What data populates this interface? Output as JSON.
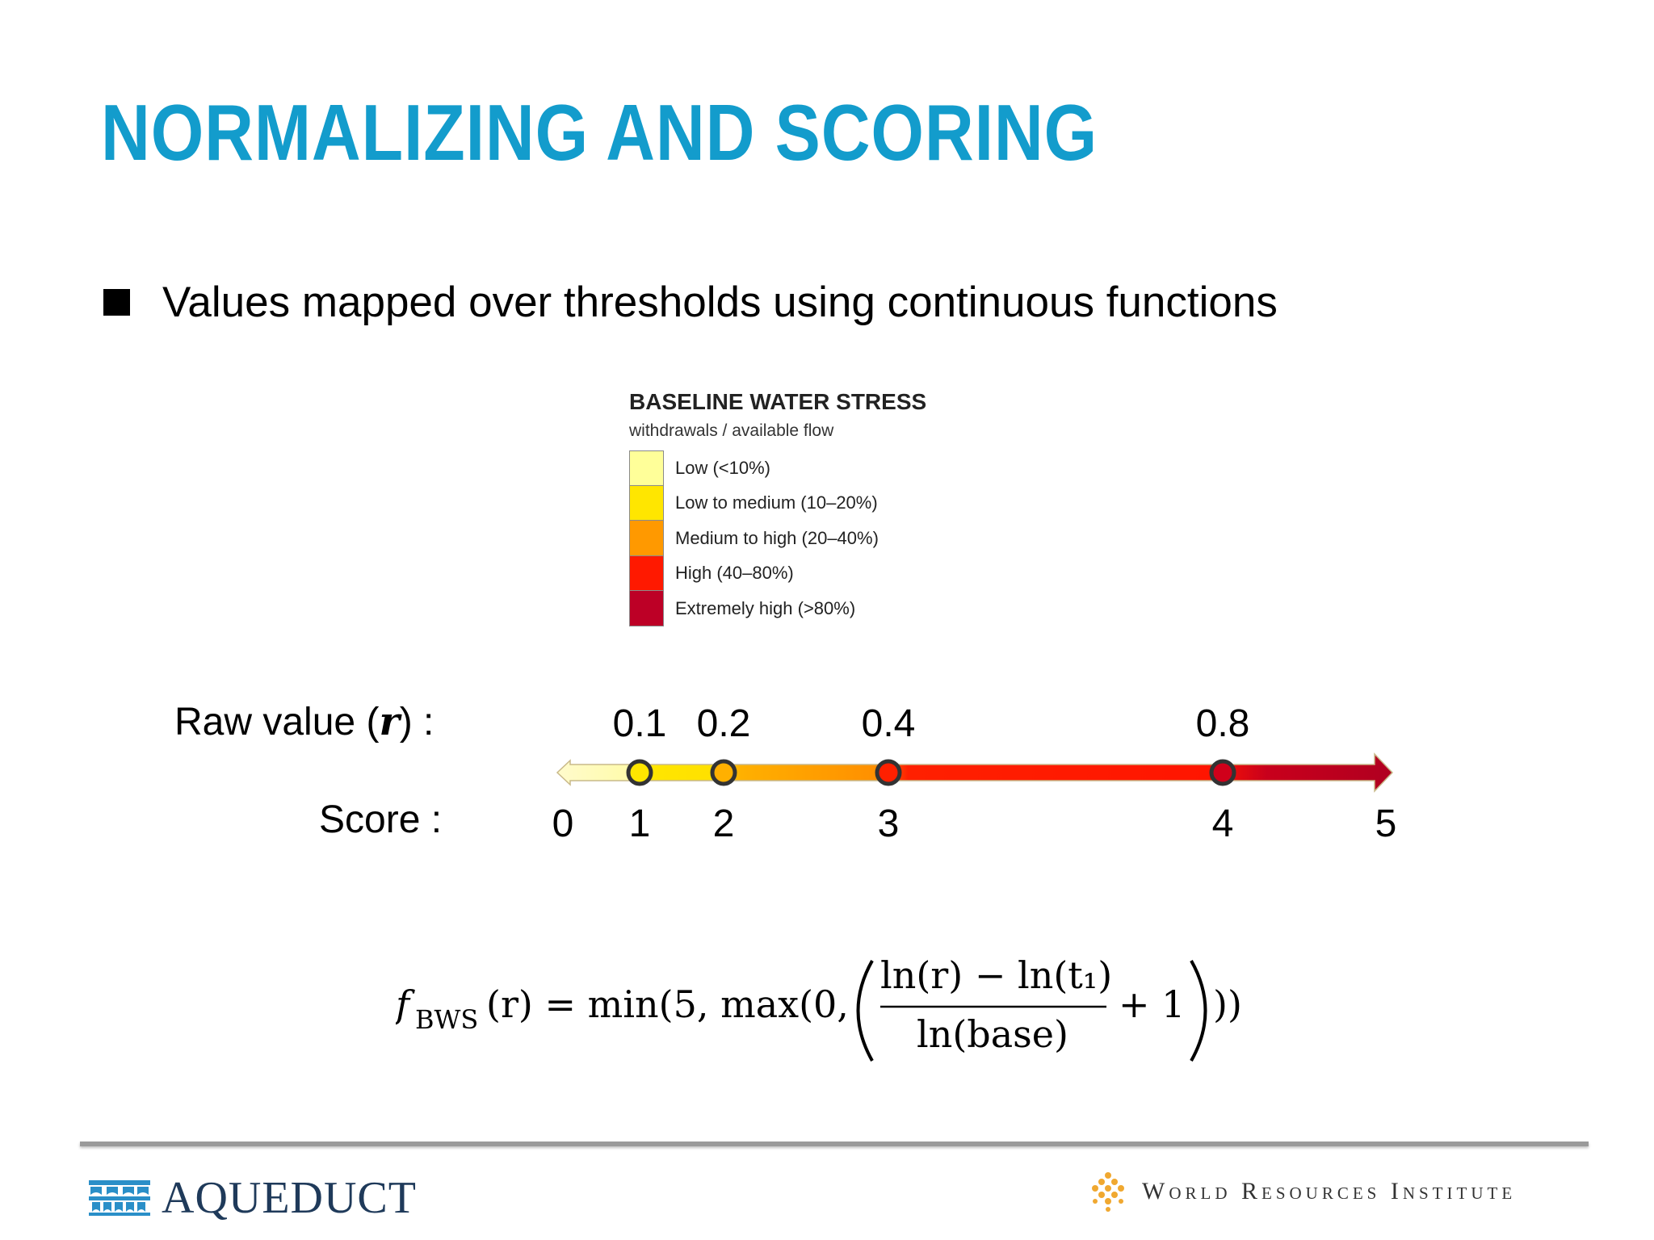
{
  "slide": {
    "title": "NORMALIZING AND SCORING",
    "bullet": "Values mapped over thresholds using continuous functions"
  },
  "legend": {
    "title": "BASELINE WATER STRESS",
    "subtitle": "withdrawals / available flow",
    "items": [
      {
        "label": "Low (<10%)",
        "color": "#ffff99"
      },
      {
        "label": "Low to medium (10–20%)",
        "color": "#ffe600"
      },
      {
        "label": "Medium to high (20–40%)",
        "color": "#ff9900"
      },
      {
        "label": "High (40–80%)",
        "color": "#ff1900"
      },
      {
        "label": "Extremely high (>80%)",
        "color": "#bd0026"
      }
    ]
  },
  "scale": {
    "raw_label_prefix": "Raw value (",
    "raw_label_var": "r",
    "raw_label_suffix": ") :",
    "score_label": "Score :",
    "raw_values": [
      "0.1",
      "0.2",
      "0.4",
      "0.8"
    ],
    "scores": [
      "0",
      "1",
      "2",
      "3",
      "4",
      "5"
    ],
    "marker_scores": [
      1,
      2,
      3,
      4
    ]
  },
  "formula": {
    "f": "f",
    "subscript": "BWS",
    "lhs_arg": "(r) = min(5, max(0,",
    "numerator": "ln(r) − ln(t₁)",
    "denominator": "ln(base)",
    "tail": "+ 1",
    "close": "))"
  },
  "footer": {
    "left_logo_text": "AQUEDUCT",
    "right_logo_text": "World Resources Institute"
  }
}
